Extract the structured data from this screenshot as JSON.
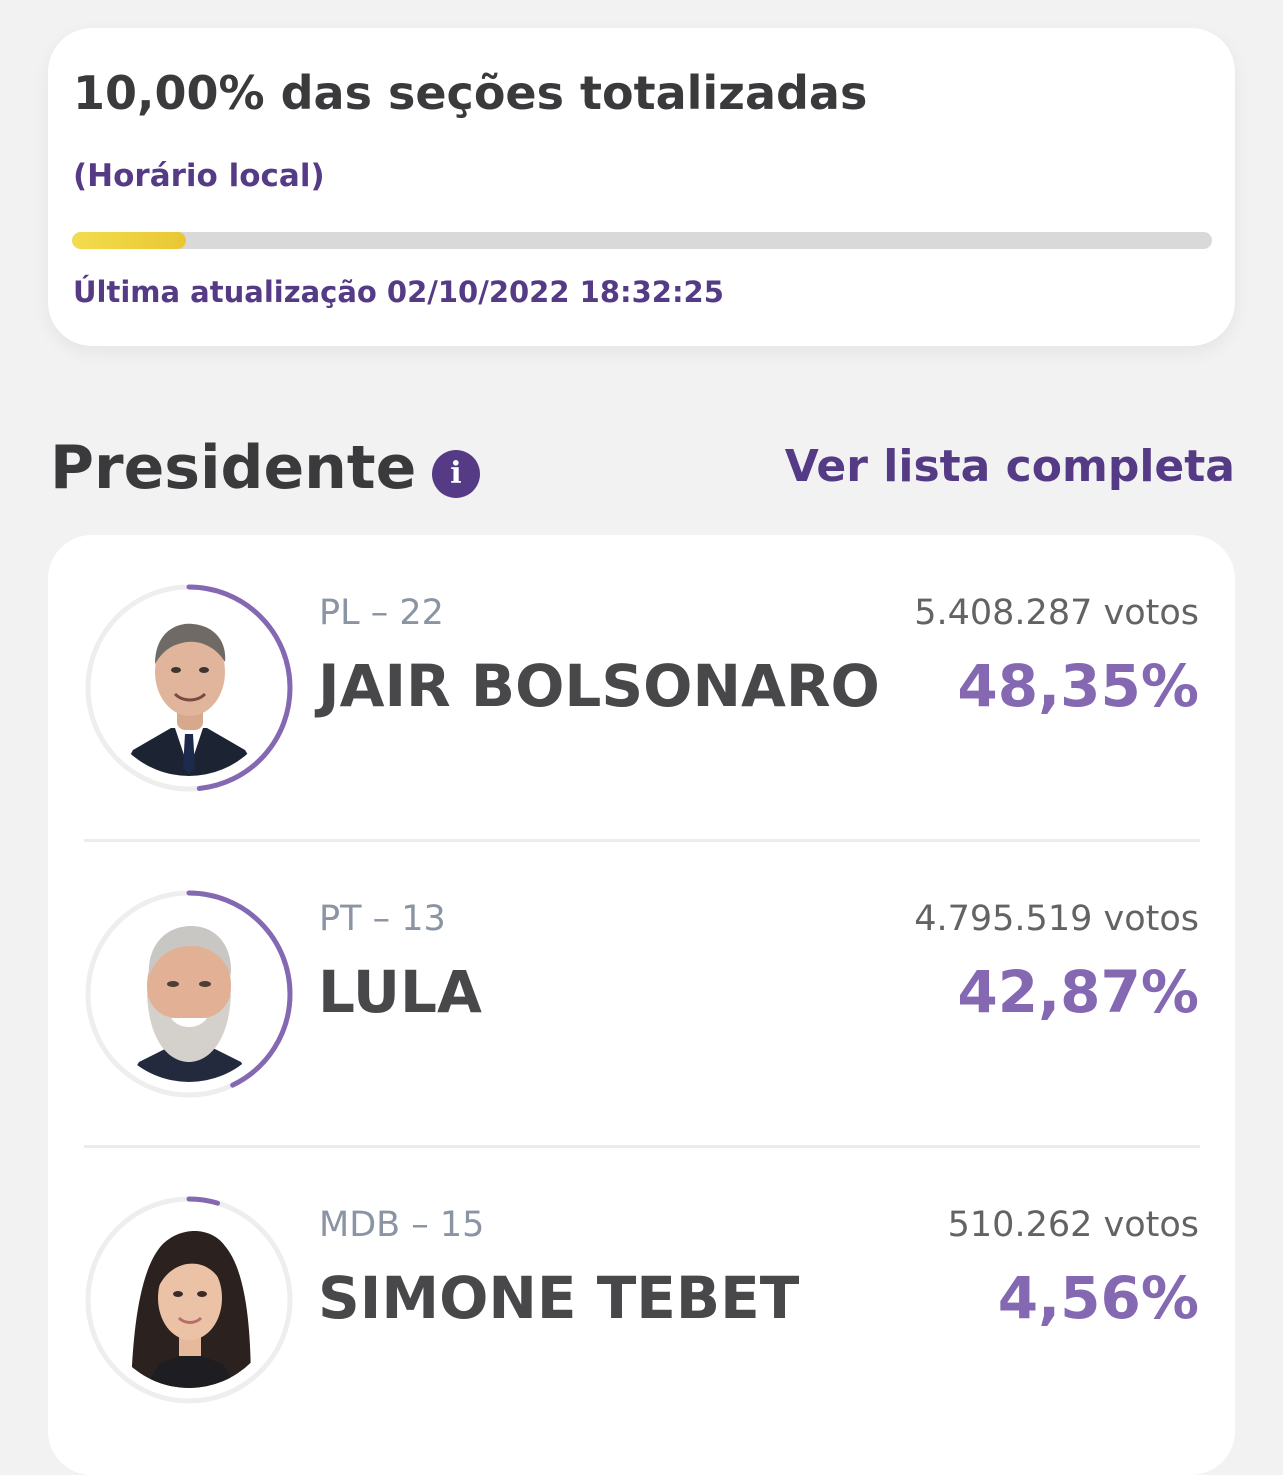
{
  "status": {
    "title": "10,00% das seções totalizadas",
    "local_time": "(Horário local)",
    "progress_percent": 10,
    "last_update": "Última atualização 02/10/2022 18:32:25"
  },
  "section": {
    "title": "Presidente",
    "info_icon": "info-icon",
    "see_full_list": "Ver lista completa"
  },
  "colors": {
    "accent": "#553b85",
    "percent": "#8468b2",
    "progress": "#f3dc4e"
  },
  "candidates": [
    {
      "party": "PL – 22",
      "name": "JAIR BOLSONARO",
      "votes": "5.408.287 votos",
      "percent": "48,35%",
      "share": 48.35,
      "photo": "candidate-photo"
    },
    {
      "party": "PT – 13",
      "name": "LULA",
      "votes": "4.795.519 votos",
      "percent": "42,87%",
      "share": 42.87,
      "photo": "candidate-photo"
    },
    {
      "party": "MDB – 15",
      "name": "SIMONE TEBET",
      "votes": "510.262 votos",
      "percent": "4,56%",
      "share": 4.56,
      "photo": "candidate-photo"
    }
  ]
}
